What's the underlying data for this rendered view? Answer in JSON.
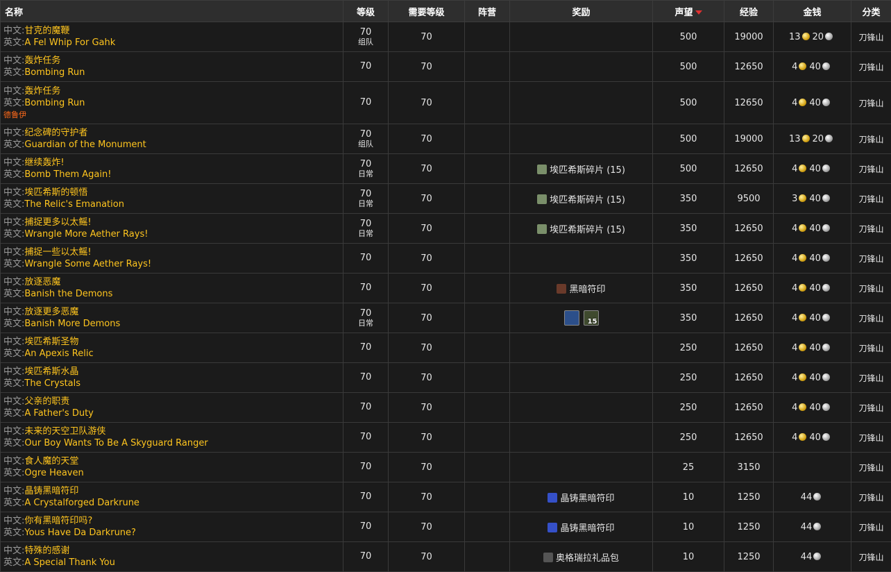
{
  "table": {
    "headers": [
      "名称",
      "等级",
      "需要等级",
      "阵营",
      "奖励",
      "声望",
      "经验",
      "金钱",
      "分类"
    ],
    "labels": {
      "zh": "中文:",
      "en": "英文:"
    },
    "rows": [
      {
        "zh": "甘克的魔鞭",
        "en": "A Fel Whip For Gahk",
        "level": 70,
        "tag": "组队",
        "req": 70,
        "rep": 500,
        "xp": 19000,
        "money": {
          "gold": 13,
          "silver": 20
        },
        "category": "刀锋山"
      },
      {
        "zh": "轰炸任务",
        "en": "Bombing Run",
        "level": 70,
        "req": 70,
        "rep": 500,
        "xp": 12650,
        "money": {
          "gold": 4,
          "silver": 40
        },
        "category": "刀锋山"
      },
      {
        "zh": "轰炸任务",
        "en": "Bombing Run",
        "note": "德鲁伊",
        "level": 70,
        "req": 70,
        "rep": 500,
        "xp": 12650,
        "money": {
          "gold": 4,
          "silver": 40
        },
        "category": "刀锋山"
      },
      {
        "zh": "纪念碑的守护者",
        "en": "Guardian of the Monument",
        "level": 70,
        "tag": "组队",
        "req": 70,
        "rep": 500,
        "xp": 19000,
        "money": {
          "gold": 13,
          "silver": 20
        },
        "category": "刀锋山"
      },
      {
        "zh": "继续轰炸!",
        "en": "Bomb Them Again!",
        "level": 70,
        "tag": "日常",
        "req": 70,
        "reward": [
          {
            "color": "#7a8f6a",
            "text": "埃匹希斯碎片 (15)"
          }
        ],
        "rep": 500,
        "xp": 12650,
        "money": {
          "gold": 4,
          "silver": 40
        },
        "category": "刀锋山"
      },
      {
        "zh": "埃匹希斯的顿悟",
        "en": "The Relic's Emanation",
        "level": 70,
        "tag": "日常",
        "req": 70,
        "reward": [
          {
            "color": "#7a8f6a",
            "text": "埃匹希斯碎片 (15)"
          }
        ],
        "rep": 350,
        "xp": 9500,
        "money": {
          "gold": 3,
          "silver": 40
        },
        "category": "刀锋山"
      },
      {
        "zh": "捕捉更多以太鳐!",
        "en": "Wrangle More Aether Rays!",
        "level": 70,
        "tag": "日常",
        "req": 70,
        "reward": [
          {
            "color": "#7a8f6a",
            "text": "埃匹希斯碎片 (15)"
          }
        ],
        "rep": 350,
        "xp": 12650,
        "money": {
          "gold": 4,
          "silver": 40
        },
        "category": "刀锋山"
      },
      {
        "zh": "捕捉一些以太鳐!",
        "en": "Wrangle Some Aether Rays!",
        "level": 70,
        "req": 70,
        "rep": 350,
        "xp": 12650,
        "money": {
          "gold": 4,
          "silver": 40
        },
        "category": "刀锋山"
      },
      {
        "zh": "放逐恶魔",
        "en": "Banish the Demons",
        "level": 70,
        "req": 70,
        "reward": [
          {
            "color": "#6a3a2a",
            "text": "黑暗符印"
          }
        ],
        "rep": 350,
        "xp": 12650,
        "money": {
          "gold": 4,
          "silver": 40
        },
        "category": "刀锋山"
      },
      {
        "zh": "放逐更多恶魔",
        "en": "Banish More Demons",
        "level": 70,
        "tag": "日常",
        "req": 70,
        "icons": [
          {
            "color": "#2c4f8a"
          },
          {
            "color": "#3f4a2e",
            "count": 15
          }
        ],
        "rep": 350,
        "xp": 12650,
        "money": {
          "gold": 4,
          "silver": 40
        },
        "category": "刀锋山"
      },
      {
        "zh": "埃匹希斯圣物",
        "en": "An Apexis Relic",
        "level": 70,
        "req": 70,
        "rep": 250,
        "xp": 12650,
        "money": {
          "gold": 4,
          "silver": 40
        },
        "category": "刀锋山"
      },
      {
        "zh": "埃匹希斯水晶",
        "en": "The Crystals",
        "level": 70,
        "req": 70,
        "rep": 250,
        "xp": 12650,
        "money": {
          "gold": 4,
          "silver": 40
        },
        "category": "刀锋山"
      },
      {
        "zh": "父亲的职责",
        "en": "A Father's Duty",
        "level": 70,
        "req": 70,
        "rep": 250,
        "xp": 12650,
        "money": {
          "gold": 4,
          "silver": 40
        },
        "category": "刀锋山"
      },
      {
        "zh": "未来的天空卫队游侠",
        "en": "Our Boy Wants To Be A Skyguard Ranger",
        "level": 70,
        "req": 70,
        "rep": 250,
        "xp": 12650,
        "money": {
          "gold": 4,
          "silver": 40
        },
        "category": "刀锋山"
      },
      {
        "zh": "食人魔的天堂",
        "en": "Ogre Heaven",
        "level": 70,
        "req": 70,
        "rep": 25,
        "xp": 3150,
        "category": "刀锋山"
      },
      {
        "zh": "晶铸黑暗符印",
        "en": "A Crystalforged Darkrune",
        "level": 70,
        "req": 70,
        "reward": [
          {
            "color": "#3550c8",
            "text": "晶铸黑暗符印"
          }
        ],
        "rep": 10,
        "xp": 1250,
        "money": {
          "silver": 44
        },
        "category": "刀锋山"
      },
      {
        "zh": "你有黑暗符印吗?",
        "en": "Yous Have Da Darkrune?",
        "level": 70,
        "req": 70,
        "reward": [
          {
            "color": "#3550c8",
            "text": "晶铸黑暗符印"
          }
        ],
        "rep": 10,
        "xp": 1250,
        "money": {
          "silver": 44
        },
        "category": "刀锋山"
      },
      {
        "zh": "特殊的感谢",
        "en": "A Special Thank You",
        "level": 70,
        "req": 70,
        "reward": [
          {
            "color": "#555555",
            "text": "奥格瑞拉礼品包"
          }
        ],
        "rep": 10,
        "xp": 1250,
        "money": {
          "silver": 44
        },
        "category": "刀锋山"
      }
    ]
  }
}
